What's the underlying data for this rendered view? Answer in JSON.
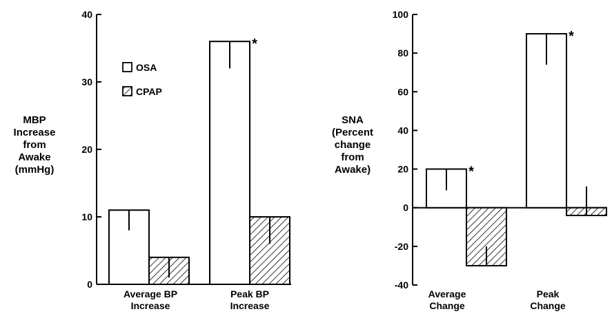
{
  "chart_data": [
    {
      "type": "bar",
      "ylabel": [
        "MBP",
        "Increase",
        "from",
        "Awake",
        "(mmHg)"
      ],
      "ylim": [
        0,
        40
      ],
      "yticks": [
        0,
        10,
        20,
        30,
        40
      ],
      "categories": [
        {
          "lines": [
            "Average BP",
            "Increase"
          ]
        },
        {
          "lines": [
            "Peak BP",
            "Increase"
          ]
        }
      ],
      "series": [
        {
          "name": "OSA",
          "pattern": "open",
          "values": [
            11,
            36
          ],
          "errors": [
            3,
            4
          ],
          "significant": [
            false,
            true
          ]
        },
        {
          "name": "CPAP",
          "pattern": "hatched",
          "values": [
            4,
            10
          ],
          "errors": [
            3,
            4
          ],
          "significant": [
            false,
            false
          ]
        }
      ],
      "legend": {
        "position": "top-left",
        "entries": [
          "OSA",
          "CPAP"
        ]
      },
      "significance_marker": "*",
      "grid": false
    },
    {
      "type": "bar",
      "ylabel": [
        "SNA",
        "(Percent",
        "change",
        "from",
        "Awake)"
      ],
      "ylim": [
        -40,
        100
      ],
      "yticks": [
        -40,
        -20,
        0,
        20,
        40,
        60,
        80,
        100
      ],
      "categories": [
        {
          "lines": [
            "Average",
            "Change"
          ]
        },
        {
          "lines": [
            "Peak",
            "Change"
          ]
        }
      ],
      "series": [
        {
          "name": "OSA",
          "pattern": "open",
          "values": [
            20,
            90
          ],
          "errors": [
            11,
            16
          ],
          "significant": [
            true,
            true
          ]
        },
        {
          "name": "CPAP",
          "pattern": "hatched",
          "values": [
            -30,
            -4
          ],
          "errors": [
            10,
            15
          ],
          "significant": [
            false,
            false
          ]
        }
      ],
      "significance_marker": "*",
      "grid": false
    }
  ]
}
